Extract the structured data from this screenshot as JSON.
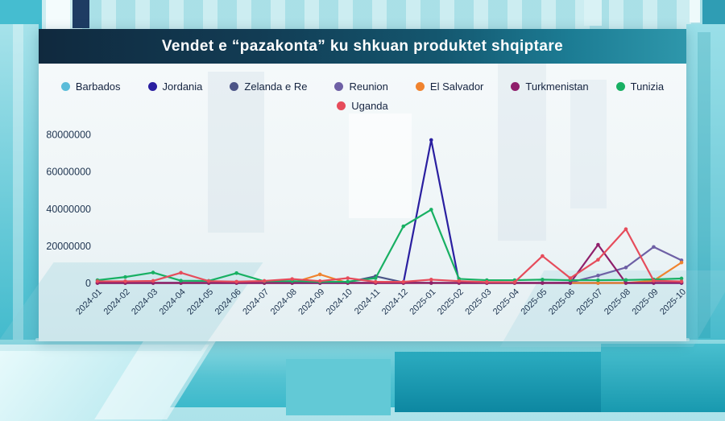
{
  "title": "Vendet e “pazakonta” ku shkuan produktet shqiptare",
  "colors": {
    "title_text": "#ffffff",
    "title_bar_left": "#10293e",
    "title_bar_right": "#2e97ab",
    "background_teal": "#3cb9cb",
    "axis_text": "#1e3450",
    "legend_text": "#14233f"
  },
  "chart_data": {
    "type": "line",
    "title": "Vendet e “pazakonta” ku shkuan produktet shqiptare",
    "xlabel": "",
    "ylabel": "",
    "grid": false,
    "legend_position": "top",
    "ylim": [
      0,
      80000000
    ],
    "y_ticks": [
      0,
      20000000,
      40000000,
      60000000,
      80000000
    ],
    "x": [
      "2024-01",
      "2024-02",
      "2024-03",
      "2024-04",
      "2024-05",
      "2024-06",
      "2024-07",
      "2024-08",
      "2024-09",
      "2024-10",
      "2024-11",
      "2024-12",
      "2025-01",
      "2025-02",
      "2025-03",
      "2025-04",
      "2025-05",
      "2025-06",
      "2025-07",
      "2025-08",
      "2025-09",
      "2025-10"
    ],
    "series": [
      {
        "name": "Barbados",
        "color": "#5bbcd9",
        "values": [
          0,
          0,
          0,
          0,
          0,
          0,
          0,
          0,
          0,
          0,
          0,
          0,
          0,
          0,
          0,
          0,
          0,
          0,
          0,
          0,
          0,
          0
        ]
      },
      {
        "name": "Jordania",
        "color": "#2a1fa0",
        "values": [
          0,
          0,
          0,
          0,
          0,
          0,
          0,
          0,
          0,
          0,
          0,
          0,
          77000000,
          500000,
          0,
          0,
          0,
          0,
          0,
          0,
          0,
          0
        ]
      },
      {
        "name": "Zelanda e Re",
        "color": "#4c5587",
        "values": [
          0,
          0,
          0,
          0,
          0,
          0,
          0,
          0,
          0,
          400000,
          3600000,
          300000,
          0,
          0,
          0,
          0,
          0,
          0,
          0,
          0,
          0,
          0
        ]
      },
      {
        "name": "Reunion",
        "color": "#6e60a5",
        "values": [
          0,
          0,
          0,
          0,
          0,
          0,
          0,
          0,
          0,
          0,
          0,
          0,
          0,
          0,
          0,
          0,
          0,
          300000,
          4000000,
          8300000,
          19400000,
          12200000
        ]
      },
      {
        "name": "El Salvador",
        "color": "#f0832e",
        "values": [
          0,
          0,
          0,
          0,
          0,
          0,
          0,
          0,
          4600000,
          0,
          0,
          0,
          0,
          0,
          0,
          0,
          0,
          0,
          0,
          0,
          1200000,
          11000000
        ]
      },
      {
        "name": "Turkmenistan",
        "color": "#8f1f6b",
        "values": [
          0,
          0,
          0,
          0,
          0,
          0,
          0,
          0,
          0,
          0,
          0,
          0,
          0,
          0,
          0,
          0,
          0,
          0,
          20600000,
          0,
          0,
          0
        ]
      },
      {
        "name": "Tunizia",
        "color": "#18b063",
        "values": [
          1500000,
          3200000,
          5600000,
          1200000,
          1100000,
          5300000,
          900000,
          1000000,
          600000,
          700000,
          2600000,
          30500000,
          39500000,
          2200000,
          1500000,
          1500000,
          1800000,
          1500000,
          1500000,
          1600000,
          1900000,
          2400000
        ]
      },
      {
        "name": "Uganda",
        "color": "#e64c5b",
        "values": [
          900000,
          900000,
          1100000,
          5500000,
          1000000,
          700000,
          1100000,
          2100000,
          1000000,
          2600000,
          600000,
          600000,
          1800000,
          1000000,
          500000,
          400000,
          14500000,
          2600000,
          12500000,
          29000000,
          1200000,
          800000
        ]
      }
    ]
  }
}
